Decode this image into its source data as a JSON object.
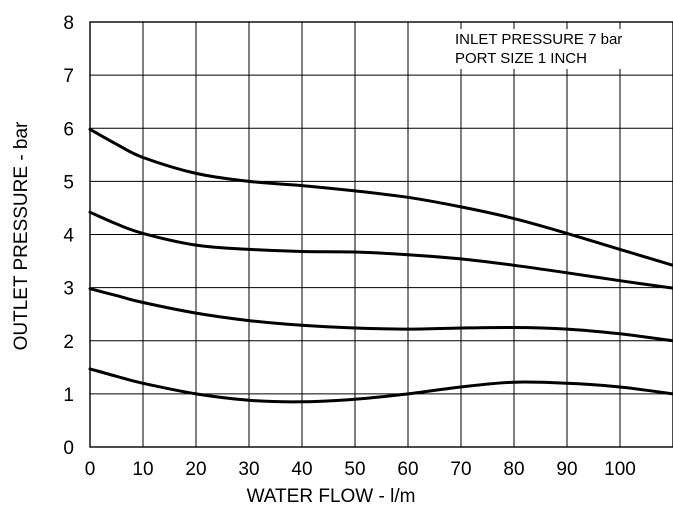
{
  "chart_data": {
    "type": "line",
    "title": "",
    "xlabel": "WATER FLOW - l/m",
    "ylabel": "OUTLET PRESSURE - bar",
    "xlim": [
      0,
      110
    ],
    "ylim": [
      0,
      8
    ],
    "xticks": [
      0,
      10,
      20,
      30,
      40,
      50,
      60,
      70,
      80,
      90,
      100
    ],
    "yticks": [
      0,
      1,
      2,
      3,
      4,
      5,
      6,
      7,
      8
    ],
    "grid": true,
    "legend": "none",
    "annotations": [
      "INLET PRESSURE 7 bar",
      "PORT SIZE 1 INCH"
    ],
    "annotation_position": "top-right",
    "line_color": "#000000",
    "series": [
      {
        "x": [
          0,
          5,
          10,
          20,
          30,
          40,
          50,
          60,
          70,
          80,
          90,
          100,
          110
        ],
        "y": [
          5.98,
          5.7,
          5.45,
          5.15,
          5.0,
          4.92,
          4.82,
          4.7,
          4.52,
          4.3,
          4.02,
          3.72,
          3.42
        ]
      },
      {
        "x": [
          0,
          5,
          10,
          20,
          30,
          40,
          50,
          60,
          70,
          80,
          90,
          100,
          110
        ],
        "y": [
          4.42,
          4.2,
          4.02,
          3.8,
          3.72,
          3.68,
          3.67,
          3.62,
          3.54,
          3.42,
          3.28,
          3.13,
          2.99
        ]
      },
      {
        "x": [
          0,
          5,
          10,
          20,
          30,
          40,
          50,
          60,
          70,
          80,
          90,
          100,
          110
        ],
        "y": [
          2.98,
          2.85,
          2.72,
          2.52,
          2.38,
          2.29,
          2.24,
          2.22,
          2.24,
          2.25,
          2.22,
          2.13,
          2.0
        ]
      },
      {
        "x": [
          0,
          5,
          10,
          20,
          30,
          40,
          50,
          60,
          70,
          80,
          90,
          100,
          110
        ],
        "y": [
          1.47,
          1.33,
          1.2,
          1.0,
          0.88,
          0.85,
          0.9,
          1.0,
          1.13,
          1.22,
          1.2,
          1.13,
          1.0
        ]
      }
    ]
  }
}
